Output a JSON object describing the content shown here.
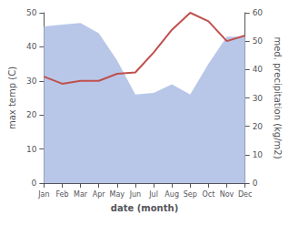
{
  "chart_data": {
    "type": "line",
    "xlabel": "date (month)",
    "ylabel": "max temp (C)",
    "y2label": "med. precipitation (kg/m2)",
    "categories": [
      "Jan",
      "Feb",
      "Mar",
      "Apr",
      "May",
      "Jun",
      "Jul",
      "Aug",
      "Sep",
      "Oct",
      "Nov",
      "Dec"
    ],
    "series": [
      {
        "type": "area",
        "color": "#b8c7e8",
        "values": [
          46,
          46.5,
          47,
          44,
          36,
          26,
          26.5,
          29,
          26,
          35,
          43,
          43
        ]
      },
      {
        "type": "line",
        "color": "#c0504d",
        "axis": "y2",
        "values": [
          37.5,
          35,
          36,
          36,
          38.5,
          39,
          46,
          54,
          60,
          57,
          50,
          52
        ]
      }
    ],
    "ylim": [
      0,
      50
    ],
    "yticks": [
      0,
      10,
      20,
      30,
      40,
      50
    ],
    "y2lim": [
      0,
      60
    ],
    "y2ticks": [
      0,
      10,
      20,
      30,
      40,
      50,
      60
    ],
    "grid": false
  }
}
